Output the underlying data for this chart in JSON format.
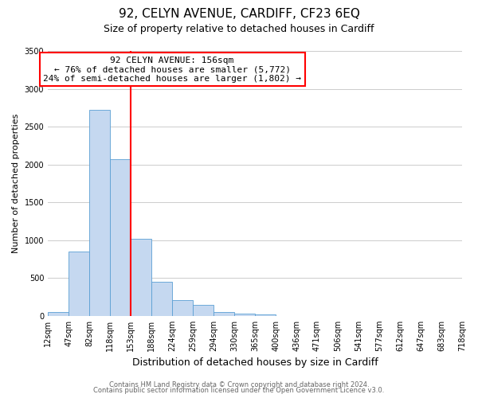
{
  "title": "92, CELYN AVENUE, CARDIFF, CF23 6EQ",
  "subtitle": "Size of property relative to detached houses in Cardiff",
  "xlabel": "Distribution of detached houses by size in Cardiff",
  "ylabel": "Number of detached properties",
  "bar_values": [
    55,
    855,
    2725,
    2065,
    1020,
    455,
    205,
    140,
    55,
    30,
    20,
    0,
    0,
    0,
    0,
    0,
    0,
    0,
    0,
    0
  ],
  "bin_labels": [
    "12sqm",
    "47sqm",
    "82sqm",
    "118sqm",
    "153sqm",
    "188sqm",
    "224sqm",
    "259sqm",
    "294sqm",
    "330sqm",
    "365sqm",
    "400sqm",
    "436sqm",
    "471sqm",
    "506sqm",
    "541sqm",
    "577sqm",
    "612sqm",
    "647sqm",
    "683sqm",
    "718sqm"
  ],
  "bar_color": "#c5d8f0",
  "bar_edge_color": "#5a9fd4",
  "vline_x_index": 4,
  "vline_color": "red",
  "annotation_text_line1": "92 CELYN AVENUE: 156sqm",
  "annotation_text_line2": "← 76% of detached houses are smaller (5,772)",
  "annotation_text_line3": "24% of semi-detached houses are larger (1,802) →",
  "annotation_box_color": "white",
  "annotation_box_edge_color": "red",
  "ylim": [
    0,
    3500
  ],
  "yticks": [
    0,
    500,
    1000,
    1500,
    2000,
    2500,
    3000,
    3500
  ],
  "footer1": "Contains HM Land Registry data © Crown copyright and database right 2024.",
  "footer2": "Contains public sector information licensed under the Open Government Licence v3.0.",
  "bg_color": "white",
  "grid_color": "#cccccc",
  "title_fontsize": 11,
  "subtitle_fontsize": 9,
  "ylabel_fontsize": 8,
  "xlabel_fontsize": 9,
  "tick_fontsize": 7,
  "annot_fontsize": 8,
  "footer_fontsize": 6,
  "footer_color": "#666666"
}
